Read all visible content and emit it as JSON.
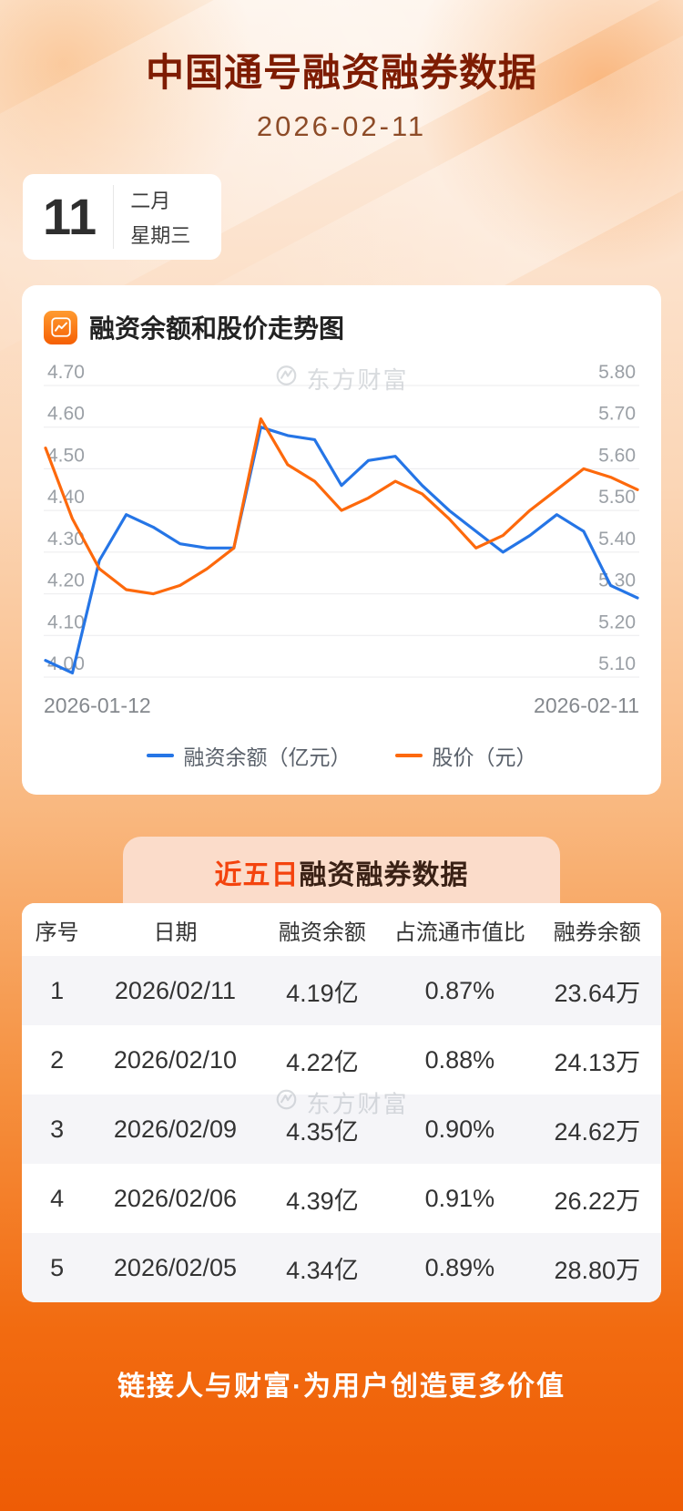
{
  "header": {
    "title": "中国通号融资融券数据",
    "date": "2026-02-11"
  },
  "date_card": {
    "day": "11",
    "month": "二月",
    "weekday": "星期三"
  },
  "chart_section": {
    "title": "融资余额和股价走势图",
    "watermark": "东方财富"
  },
  "chart_data": {
    "type": "line",
    "title": "融资余额和股价走势图",
    "x_axis_labels": [
      "2026-01-12",
      "2026-02-11"
    ],
    "grid": "horizontal",
    "legend_position": "bottom",
    "left_axis": {
      "min": 4.0,
      "max": 4.7,
      "ticks": [
        "4.70",
        "4.60",
        "4.50",
        "4.40",
        "4.30",
        "4.20",
        "4.10",
        "4.00"
      ]
    },
    "right_axis": {
      "min": 5.1,
      "max": 5.8,
      "ticks": [
        "5.80",
        "5.70",
        "5.60",
        "5.50",
        "5.40",
        "5.30",
        "5.20",
        "5.10"
      ]
    },
    "series": [
      {
        "name": "融资余额（亿元）",
        "axis": "left",
        "color": "#2575e6",
        "values": [
          4.04,
          4.01,
          4.28,
          4.39,
          4.36,
          4.32,
          4.31,
          4.31,
          4.6,
          4.58,
          4.57,
          4.46,
          4.52,
          4.53,
          4.46,
          4.4,
          4.35,
          4.3,
          4.34,
          4.39,
          4.35,
          4.22,
          4.19
        ]
      },
      {
        "name": "股价（元）",
        "axis": "right",
        "color": "#fd690c",
        "values": [
          5.65,
          5.48,
          5.36,
          5.31,
          5.3,
          5.32,
          5.36,
          5.41,
          5.72,
          5.61,
          5.57,
          5.5,
          5.53,
          5.57,
          5.54,
          5.48,
          5.41,
          5.44,
          5.5,
          5.55,
          5.6,
          5.58,
          5.55
        ]
      }
    ]
  },
  "table_section": {
    "title_highlight": "近五日",
    "title_rest": "融资融券数据",
    "watermark": "东方财富",
    "columns": [
      "序号",
      "日期",
      "融资余额",
      "占流通市值比",
      "融券余额"
    ],
    "rows": [
      [
        "1",
        "2026/02/11",
        "4.19亿",
        "0.87%",
        "23.64万"
      ],
      [
        "2",
        "2026/02/10",
        "4.22亿",
        "0.88%",
        "24.13万"
      ],
      [
        "3",
        "2026/02/09",
        "4.35亿",
        "0.90%",
        "24.62万"
      ],
      [
        "4",
        "2026/02/06",
        "4.39亿",
        "0.91%",
        "26.22万"
      ],
      [
        "5",
        "2026/02/05",
        "4.34亿",
        "0.89%",
        "28.80万"
      ]
    ]
  },
  "footer": {
    "slogan": "链接人与财富·为用户创造更多价值"
  },
  "colors": {
    "title": "#7e1c02",
    "pill_highlight": "#f4430d",
    "line_blue": "#2575e6",
    "line_orange": "#fd690c",
    "row_stripe": "#f5f5f8",
    "background_bottom": "#ee5c05"
  }
}
